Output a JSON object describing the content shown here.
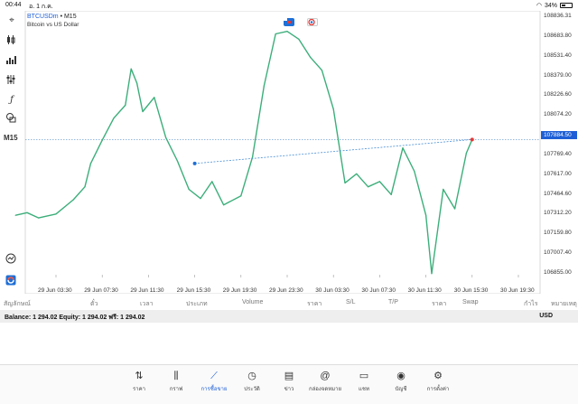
{
  "status_bar": {
    "time": "00:44",
    "date": "อ. 1 ก.ค.",
    "battery": "34%"
  },
  "chart": {
    "symbol": "BTCUSDm",
    "timeframe_short": "M15",
    "description": "Bitcoin vs US Dollar",
    "timeframe_badge": "M15",
    "current_price": "107884.50",
    "y_ticks": [
      "108836.31",
      "108683.80",
      "108531.40",
      "108379.00",
      "108226.60",
      "108074.20",
      "107769.40",
      "107617.00",
      "107464.60",
      "107312.20",
      "107159.80",
      "107007.40",
      "106855.00"
    ],
    "x_ticks": [
      "29 Jun 03:30",
      "29 Jun 07:30",
      "29 Jun 11:30",
      "29 Jun 15:30",
      "29 Jun 19:30",
      "29 Jun 23:30",
      "30 Jun 03:30",
      "30 Jun 07:30",
      "30 Jun 11:30",
      "30 Jun 15:30",
      "30 Jun 19:30"
    ],
    "colors": {
      "line": "#3cae7a",
      "bid_line": "#4a8fd6",
      "price_tag": "#1e5fd6",
      "marker_open": "#1e6fd6",
      "marker_current": "#e53935"
    },
    "flag_icons": [
      "calendar-event-icon",
      "news-event-icon"
    ],
    "toolbar": [
      "crosshair-icon",
      "candlestick-icon",
      "bar-chart-icon",
      "indicators-icon",
      "function-icon",
      "objects-icon",
      "history-zoom-icon",
      "timeframe-icon"
    ]
  },
  "chart_data": {
    "type": "line",
    "title": "BTCUSDm",
    "ylim": [
      106855.0,
      108836.31
    ],
    "points": [
      {
        "x": "29 Jun 00:00",
        "y": 107300
      },
      {
        "x": "29 Jun 01:00",
        "y": 107320
      },
      {
        "x": "29 Jun 02:00",
        "y": 107280
      },
      {
        "x": "29 Jun 03:30",
        "y": 107310
      },
      {
        "x": "29 Jun 05:00",
        "y": 107420
      },
      {
        "x": "29 Jun 06:00",
        "y": 107520
      },
      {
        "x": "29 Jun 06:30",
        "y": 107700
      },
      {
        "x": "29 Jun 07:30",
        "y": 107880
      },
      {
        "x": "29 Jun 08:30",
        "y": 108050
      },
      {
        "x": "29 Jun 09:30",
        "y": 108150
      },
      {
        "x": "29 Jun 10:00",
        "y": 108430
      },
      {
        "x": "29 Jun 10:30",
        "y": 108320
      },
      {
        "x": "29 Jun 11:00",
        "y": 108100
      },
      {
        "x": "29 Jun 12:00",
        "y": 108210
      },
      {
        "x": "29 Jun 13:00",
        "y": 107900
      },
      {
        "x": "29 Jun 14:00",
        "y": 107720
      },
      {
        "x": "29 Jun 15:00",
        "y": 107500
      },
      {
        "x": "29 Jun 16:00",
        "y": 107430
      },
      {
        "x": "29 Jun 17:00",
        "y": 107560
      },
      {
        "x": "29 Jun 18:00",
        "y": 107380
      },
      {
        "x": "29 Jun 19:30",
        "y": 107450
      },
      {
        "x": "29 Jun 20:30",
        "y": 107750
      },
      {
        "x": "29 Jun 21:30",
        "y": 108300
      },
      {
        "x": "29 Jun 22:30",
        "y": 108700
      },
      {
        "x": "29 Jun 23:30",
        "y": 108720
      },
      {
        "x": "30 Jun 00:30",
        "y": 108660
      },
      {
        "x": "30 Jun 01:30",
        "y": 108520
      },
      {
        "x": "30 Jun 02:30",
        "y": 108420
      },
      {
        "x": "30 Jun 03:30",
        "y": 108120
      },
      {
        "x": "30 Jun 04:30",
        "y": 107550
      },
      {
        "x": "30 Jun 05:30",
        "y": 107620
      },
      {
        "x": "30 Jun 06:30",
        "y": 107520
      },
      {
        "x": "30 Jun 07:30",
        "y": 107560
      },
      {
        "x": "30 Jun 08:30",
        "y": 107460
      },
      {
        "x": "30 Jun 09:30",
        "y": 107820
      },
      {
        "x": "30 Jun 10:30",
        "y": 107640
      },
      {
        "x": "30 Jun 11:30",
        "y": 107300
      },
      {
        "x": "30 Jun 12:00",
        "y": 106850
      },
      {
        "x": "30 Jun 13:00",
        "y": 107500
      },
      {
        "x": "30 Jun 14:00",
        "y": 107350
      },
      {
        "x": "30 Jun 15:00",
        "y": 107780
      },
      {
        "x": "30 Jun 15:30",
        "y": 107885
      }
    ]
  },
  "positions_header": {
    "columns": [
      "สัญลักษณ์",
      "ตั๋ว",
      "เวลา",
      "ประเภท",
      "Volume",
      "ราคา",
      "S/L",
      "T/P",
      "ราคา",
      "Swap",
      "กำไร",
      "หมายเหตุ"
    ]
  },
  "account": {
    "summary": "Balance: 1 294.02 Equity: 1 294.02 ฟรี: 1 294.02",
    "currency": "USD"
  },
  "nav": [
    {
      "label": "ราคา",
      "icon": "quotes-icon"
    },
    {
      "label": "กราฟ",
      "icon": "charts-icon"
    },
    {
      "label": "การซื้อขาย",
      "icon": "trade-icon",
      "active": true
    },
    {
      "label": "ประวัติ",
      "icon": "history-icon"
    },
    {
      "label": "ข่าว",
      "icon": "news-icon"
    },
    {
      "label": "กล่องจดหมาย",
      "icon": "mailbox-icon"
    },
    {
      "label": "แชท",
      "icon": "chat-icon"
    },
    {
      "label": "บัญชี",
      "icon": "accounts-icon"
    },
    {
      "label": "การตั้งค่า",
      "icon": "settings-icon"
    }
  ]
}
